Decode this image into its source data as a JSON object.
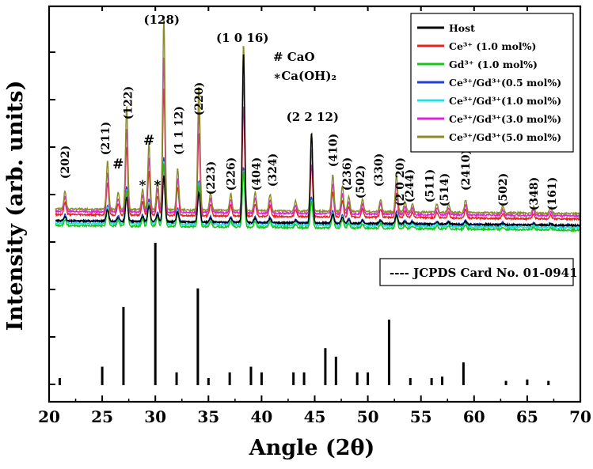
{
  "chart_data": {
    "type": "line",
    "xlabel": "Angle (2θ)",
    "ylabel": "Intensity (arb. units)",
    "xlim": [
      20,
      70
    ],
    "x_ticks": [
      20,
      25,
      30,
      35,
      40,
      45,
      50,
      55,
      60,
      65,
      70
    ],
    "legend_position": "top-right",
    "series": [
      {
        "name": "Host",
        "color": "#000000",
        "offset": 0
      },
      {
        "name": "Ce³⁺ (1.0 mol%)",
        "color": "#e8231f",
        "offset": 8
      },
      {
        "name": "Gd³⁺ (1.0 mol%)",
        "color": "#19c419",
        "offset": -6
      },
      {
        "name": "Ce³⁺/Gd³⁺(0.5 mol%)",
        "color": "#1f3fd6",
        "offset": 0
      },
      {
        "name": "Ce³⁺/Gd³⁺(1.0 mol%)",
        "color": "#22e0e8",
        "offset": -3
      },
      {
        "name": "Ce³⁺/Gd³⁺(3.0 mol%)",
        "color": "#e020e0",
        "offset": 12
      },
      {
        "name": "Ce³⁺/Gd³⁺(5.0 mol%)",
        "color": "#8b8b2a",
        "offset": 15
      }
    ],
    "peaks": [
      {
        "x": 21.5,
        "h": 22
      },
      {
        "x": 25.5,
        "h": 58
      },
      {
        "x": 26.5,
        "h": 20
      },
      {
        "x": 27.3,
        "h": 125
      },
      {
        "x": 28.8,
        "h": 25
      },
      {
        "x": 29.4,
        "h": 80
      },
      {
        "x": 30.2,
        "h": 35
      },
      {
        "x": 30.8,
        "h": 230
      },
      {
        "x": 32.1,
        "h": 50
      },
      {
        "x": 34.1,
        "h": 150
      },
      {
        "x": 35.2,
        "h": 20
      },
      {
        "x": 37.1,
        "h": 20
      },
      {
        "x": 38.3,
        "h": 200
      },
      {
        "x": 39.4,
        "h": 22
      },
      {
        "x": 40.8,
        "h": 20
      },
      {
        "x": 43.2,
        "h": 12
      },
      {
        "x": 44.7,
        "h": 95
      },
      {
        "x": 46.7,
        "h": 45
      },
      {
        "x": 47.6,
        "h": 30
      },
      {
        "x": 48.2,
        "h": 18
      },
      {
        "x": 49.5,
        "h": 15
      },
      {
        "x": 51.2,
        "h": 15
      },
      {
        "x": 52.7,
        "h": 45
      },
      {
        "x": 53.5,
        "h": 12
      },
      {
        "x": 54.2,
        "h": 10
      },
      {
        "x": 56.5,
        "h": 10
      },
      {
        "x": 57.6,
        "h": 10
      },
      {
        "x": 59.2,
        "h": 15
      },
      {
        "x": 62.7,
        "h": 8
      },
      {
        "x": 65.6,
        "h": 8
      },
      {
        "x": 67.2,
        "h": 7
      }
    ],
    "reference_pattern": {
      "name": "---- JCPDS Card No. 01-0941",
      "lines": [
        {
          "x": 21,
          "h": 5
        },
        {
          "x": 25,
          "h": 13
        },
        {
          "x": 27,
          "h": 55
        },
        {
          "x": 30,
          "h": 100
        },
        {
          "x": 32,
          "h": 9
        },
        {
          "x": 34,
          "h": 68
        },
        {
          "x": 35,
          "h": 5
        },
        {
          "x": 37,
          "h": 9
        },
        {
          "x": 39,
          "h": 13
        },
        {
          "x": 40,
          "h": 9
        },
        {
          "x": 43,
          "h": 9
        },
        {
          "x": 44,
          "h": 9
        },
        {
          "x": 46,
          "h": 26
        },
        {
          "x": 47,
          "h": 20
        },
        {
          "x": 49,
          "h": 9
        },
        {
          "x": 50,
          "h": 9
        },
        {
          "x": 52,
          "h": 46
        },
        {
          "x": 54,
          "h": 5
        },
        {
          "x": 56,
          "h": 5
        },
        {
          "x": 57,
          "h": 6
        },
        {
          "x": 59,
          "h": 16
        },
        {
          "x": 63,
          "h": 3
        },
        {
          "x": 65,
          "h": 4
        },
        {
          "x": 67,
          "h": 3
        }
      ]
    },
    "annotations": [
      {
        "text": "(202)",
        "x": 21.5,
        "vertical": true
      },
      {
        "text": "(211)",
        "x": 25.3,
        "vertical": true
      },
      {
        "text": "(122)",
        "x": 27.4,
        "vertical": true
      },
      {
        "text": "(128)",
        "x": 30.6,
        "vertical": false
      },
      {
        "text": "(1 1 12)",
        "x": 32.2,
        "vertical": true
      },
      {
        "text": "(220)",
        "x": 34.1,
        "vertical": true
      },
      {
        "text": "(223)",
        "x": 35.2,
        "vertical": true
      },
      {
        "text": "(226)",
        "x": 37.1,
        "vertical": true
      },
      {
        "text": "(1 0 16)",
        "x": 38.2,
        "vertical": false
      },
      {
        "text": "(404)",
        "x": 39.5,
        "vertical": true
      },
      {
        "text": "(324)",
        "x": 41.0,
        "vertical": true
      },
      {
        "text": "(2 2 12)",
        "x": 44.8,
        "vertical": false
      },
      {
        "text": "(410)",
        "x": 46.7,
        "vertical": true
      },
      {
        "text": "(236)",
        "x": 48.0,
        "vertical": true
      },
      {
        "text": "(502)",
        "x": 49.3,
        "vertical": true
      },
      {
        "text": "(330)",
        "x": 51.0,
        "vertical": true
      },
      {
        "text": "(2 0 20)",
        "x": 53.0,
        "vertical": true
      },
      {
        "text": "(244)",
        "x": 53.9,
        "vertical": true
      },
      {
        "text": "(511)",
        "x": 55.8,
        "vertical": true
      },
      {
        "text": "(514)",
        "x": 57.2,
        "vertical": true
      },
      {
        "text": "(2410)",
        "x": 59.2,
        "vertical": true
      },
      {
        "text": "(502)",
        "x": 62.7,
        "vertical": true
      },
      {
        "text": "(348)",
        "x": 65.6,
        "vertical": true
      },
      {
        "text": "(161)",
        "x": 67.3,
        "vertical": true
      }
    ],
    "impurity_markers": [
      {
        "symbol": "#",
        "x": 26.5
      },
      {
        "symbol": "*",
        "x": 28.8
      },
      {
        "symbol": "#",
        "x": 29.4
      },
      {
        "symbol": "*",
        "x": 30.2
      }
    ],
    "impurity_legend": [
      "# CaO",
      "∗Ca(OH)₂"
    ]
  }
}
